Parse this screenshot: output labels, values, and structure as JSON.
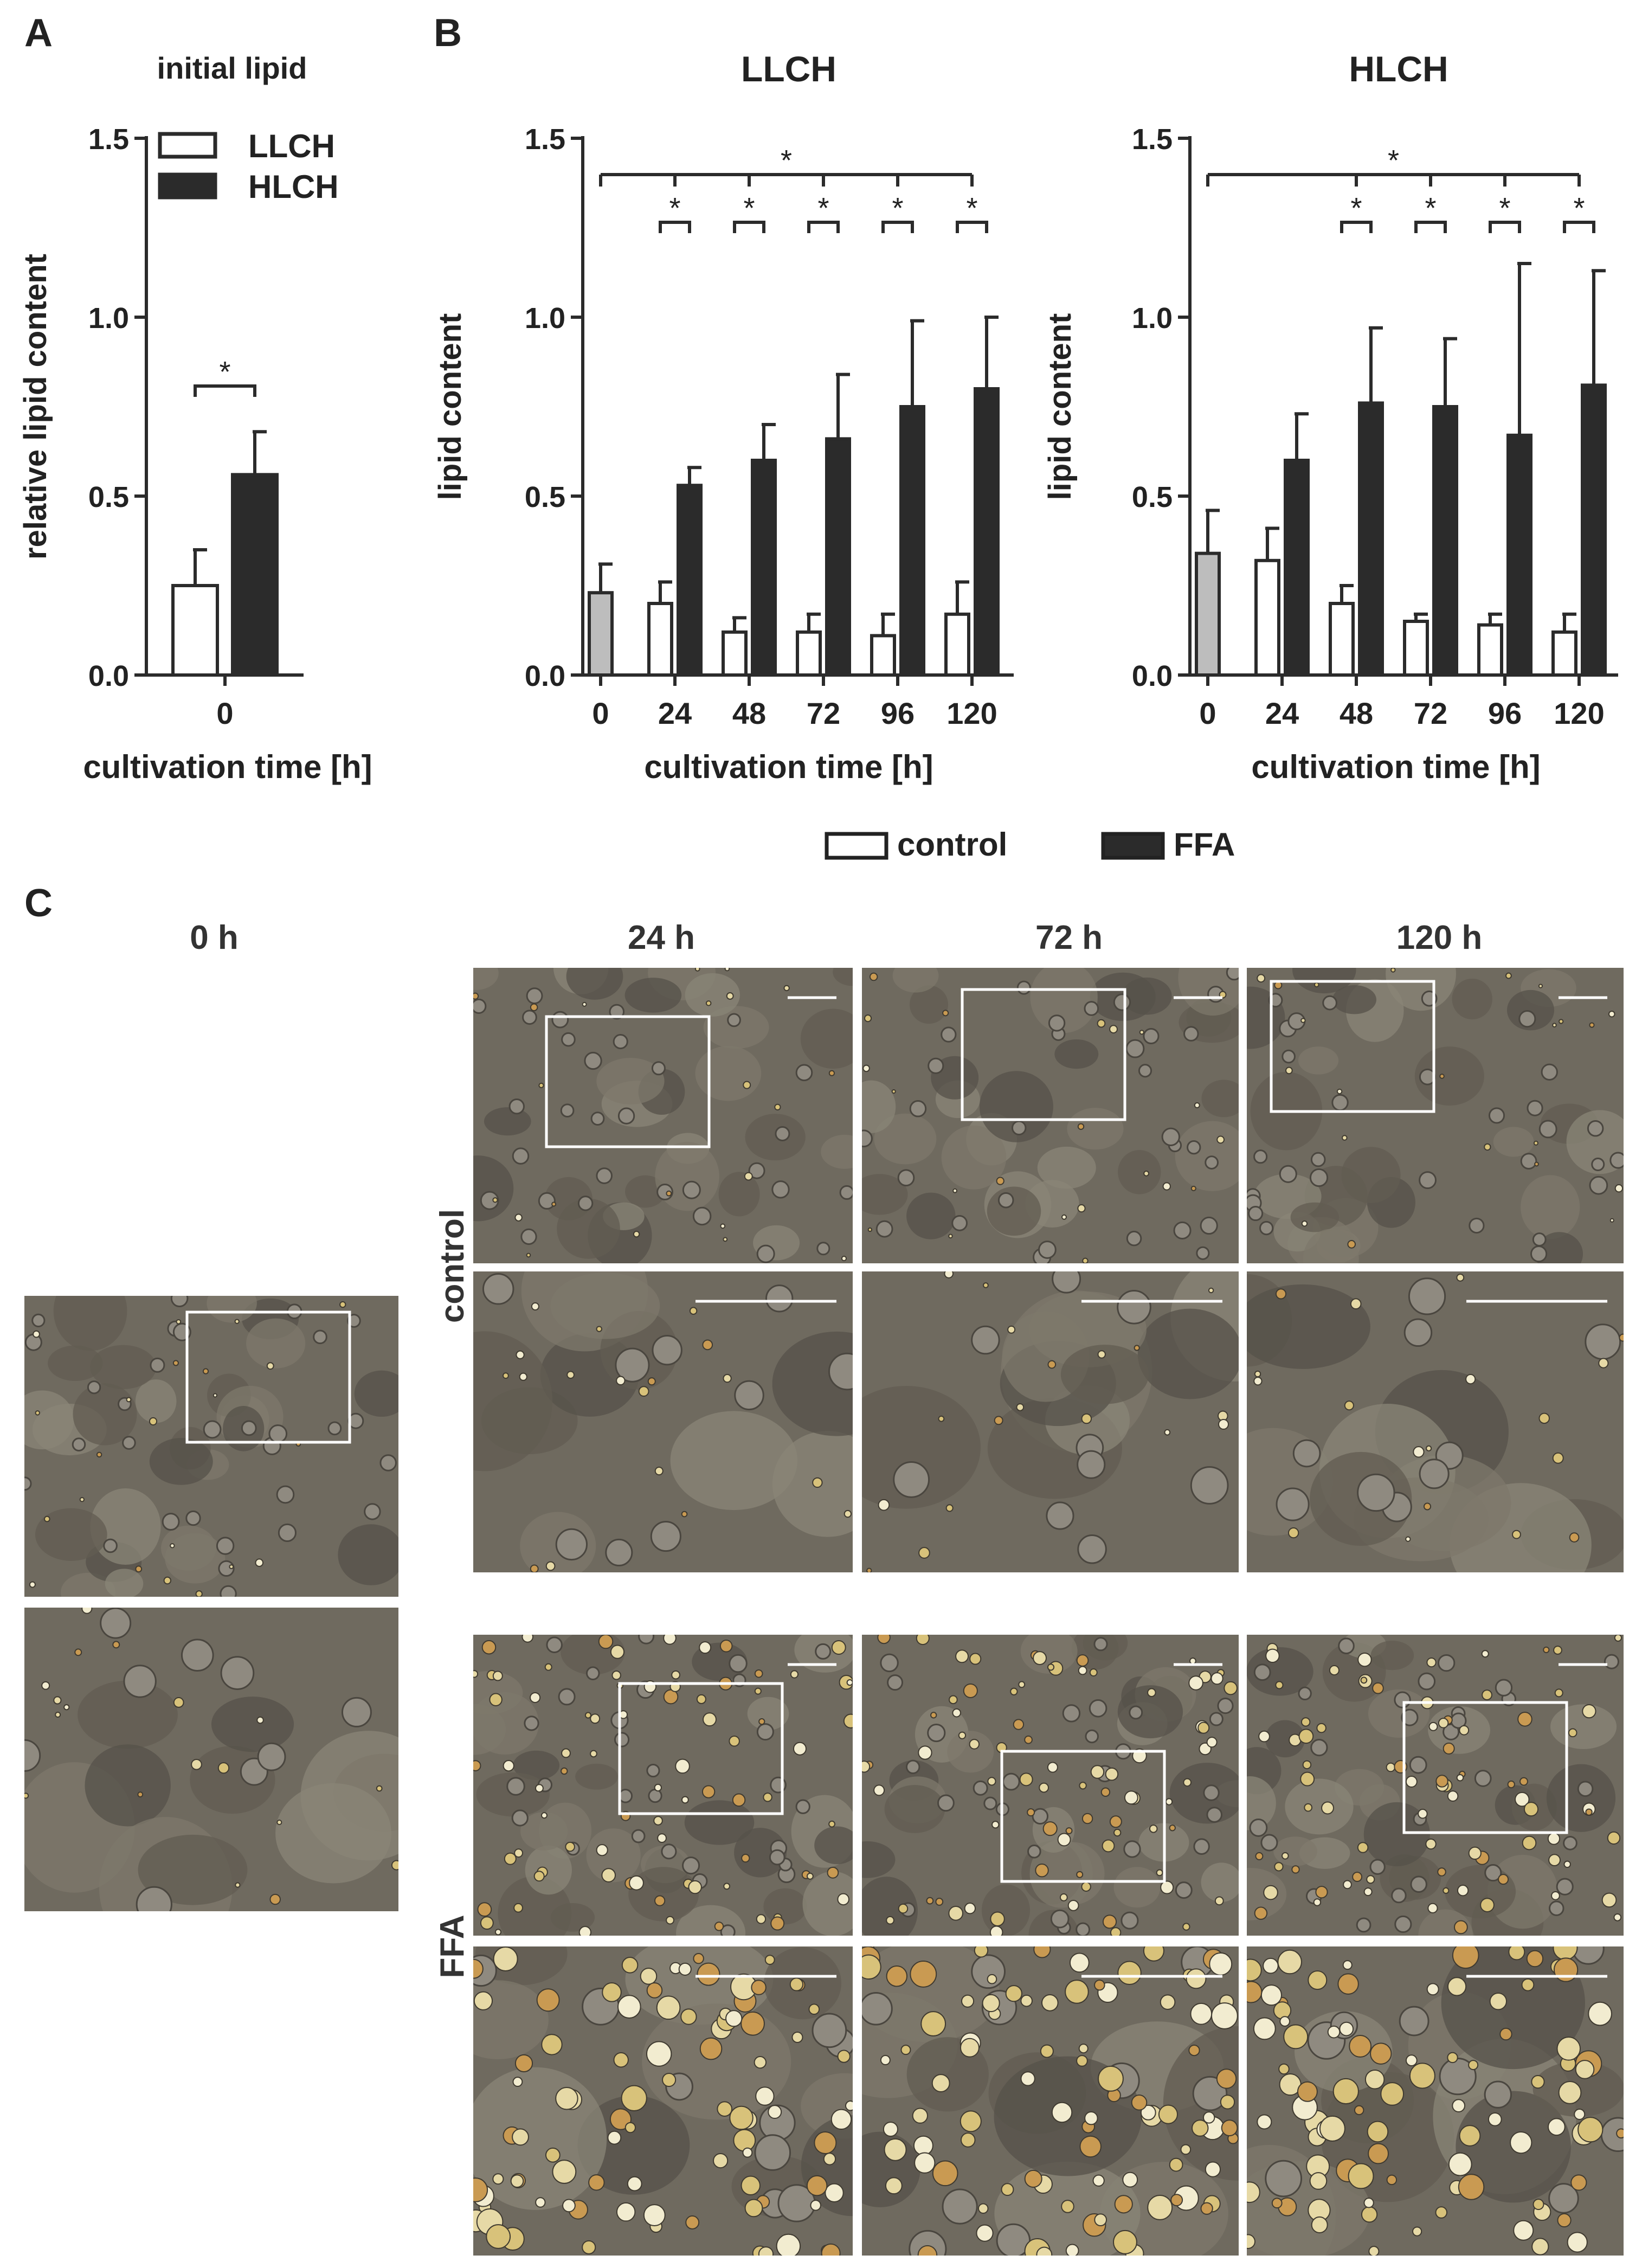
{
  "panel_labels": {
    "a": "A",
    "b": "B",
    "c": "C"
  },
  "chart_data": [
    {
      "id": "A",
      "type": "bar",
      "title": "initial lipid",
      "xlabel": "cultivation time [h]",
      "ylabel": "relative lipid content",
      "ylim": [
        0,
        1.5
      ],
      "yticks": [
        0.0,
        0.5,
        1.0,
        1.5
      ],
      "ytick_labels": [
        "0.0",
        "0.5",
        "1.0",
        "1.5"
      ],
      "categories": [
        "0"
      ],
      "legend": {
        "placement": "top",
        "entries": [
          {
            "label": "LLCH",
            "style": "open"
          },
          {
            "label": "HLCH",
            "style": "filled"
          }
        ]
      },
      "series": [
        {
          "name": "LLCH",
          "values": [
            0.25
          ],
          "errors": [
            0.1
          ],
          "style": "open"
        },
        {
          "name": "HLCH",
          "values": [
            0.56
          ],
          "errors": [
            0.12
          ],
          "style": "filled"
        }
      ],
      "significance": [
        {
          "label": "*",
          "between": [
            "LLCH",
            "HLCH"
          ],
          "at": "0"
        }
      ],
      "grid": false
    },
    {
      "id": "B-LLCH",
      "type": "bar",
      "title": "LLCH",
      "xlabel": "cultivation time [h]",
      "ylabel": "lipid content",
      "ylim": [
        0,
        1.5
      ],
      "yticks": [
        0.0,
        0.5,
        1.0,
        1.5
      ],
      "ytick_labels": [
        "0.0",
        "0.5",
        "1.0",
        "1.5"
      ],
      "categories": [
        "0",
        "24",
        "48",
        "72",
        "96",
        "120"
      ],
      "baseline": {
        "category": "0",
        "value": 0.23,
        "error": 0.08,
        "color": "#bdbdbd"
      },
      "series": [
        {
          "name": "control",
          "values": [
            null,
            0.2,
            0.12,
            0.12,
            0.11,
            0.17
          ],
          "errors": [
            null,
            0.06,
            0.04,
            0.05,
            0.06,
            0.09
          ],
          "style": "open"
        },
        {
          "name": "FFA",
          "values": [
            null,
            0.53,
            0.6,
            0.66,
            0.75,
            0.8
          ],
          "errors": [
            null,
            0.05,
            0.1,
            0.18,
            0.24,
            0.2
          ],
          "style": "filled"
        }
      ],
      "significance": [
        {
          "label": "*",
          "type": "overall",
          "from": "0",
          "to": "120"
        },
        {
          "label": "*",
          "type": "pair",
          "at": "24"
        },
        {
          "label": "*",
          "type": "pair",
          "at": "48"
        },
        {
          "label": "*",
          "type": "pair",
          "at": "72"
        },
        {
          "label": "*",
          "type": "pair",
          "at": "96"
        },
        {
          "label": "*",
          "type": "pair",
          "at": "120"
        }
      ],
      "grid": false
    },
    {
      "id": "B-HLCH",
      "type": "bar",
      "title": "HLCH",
      "xlabel": "cultivation time [h]",
      "ylabel": "lipid content",
      "ylim": [
        0,
        1.5
      ],
      "yticks": [
        0.0,
        0.5,
        1.0,
        1.5
      ],
      "ytick_labels": [
        "0.0",
        "0.5",
        "1.0",
        "1.5"
      ],
      "categories": [
        "0",
        "24",
        "48",
        "72",
        "96",
        "120"
      ],
      "baseline": {
        "category": "0",
        "value": 0.34,
        "error": 0.12,
        "color": "#bdbdbd"
      },
      "series": [
        {
          "name": "control",
          "values": [
            null,
            0.32,
            0.2,
            0.15,
            0.14,
            0.12
          ],
          "errors": [
            null,
            0.09,
            0.05,
            0.02,
            0.03,
            0.05
          ],
          "style": "open"
        },
        {
          "name": "FFA",
          "values": [
            null,
            0.6,
            0.76,
            0.75,
            0.67,
            0.81
          ],
          "errors": [
            null,
            0.13,
            0.21,
            0.19,
            0.48,
            0.32
          ],
          "style": "filled"
        }
      ],
      "significance": [
        {
          "label": "*",
          "type": "overall",
          "from": "0",
          "to": "120"
        },
        {
          "label": "*",
          "type": "pair",
          "at": "48"
        },
        {
          "label": "*",
          "type": "pair",
          "at": "72"
        },
        {
          "label": "*",
          "type": "pair",
          "at": "96"
        },
        {
          "label": "*",
          "type": "pair",
          "at": "120"
        }
      ],
      "grid": false
    }
  ],
  "legend_b": {
    "placement": "bottom",
    "entries": [
      {
        "label": "control",
        "style": "open"
      },
      {
        "label": "FFA",
        "style": "filled"
      }
    ]
  },
  "micrographs": {
    "column_labels": [
      "0 h",
      "24 h",
      "72 h",
      "120 h"
    ],
    "row_labels": [
      "control",
      "FFA"
    ],
    "tiles": [
      {
        "column": "0 h",
        "zoom": "overview"
      },
      {
        "column": "0 h",
        "zoom": "detail"
      },
      {
        "row": "control",
        "column": "24 h",
        "zoom": "overview"
      },
      {
        "row": "control",
        "column": "72 h",
        "zoom": "overview"
      },
      {
        "row": "control",
        "column": "120 h",
        "zoom": "overview"
      },
      {
        "row": "control",
        "column": "24 h",
        "zoom": "detail"
      },
      {
        "row": "control",
        "column": "72 h",
        "zoom": "detail"
      },
      {
        "row": "control",
        "column": "120 h",
        "zoom": "detail"
      },
      {
        "row": "FFA",
        "column": "24 h",
        "zoom": "overview"
      },
      {
        "row": "FFA",
        "column": "72 h",
        "zoom": "overview"
      },
      {
        "row": "FFA",
        "column": "120 h",
        "zoom": "overview"
      },
      {
        "row": "FFA",
        "column": "24 h",
        "zoom": "detail"
      },
      {
        "row": "FFA",
        "column": "72 h",
        "zoom": "detail"
      },
      {
        "row": "FFA",
        "column": "120 h",
        "zoom": "detail"
      }
    ]
  }
}
